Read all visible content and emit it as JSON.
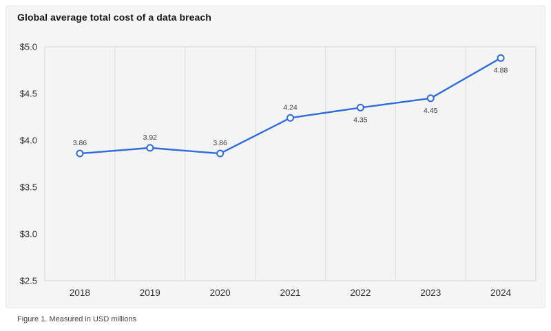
{
  "chart_data": {
    "type": "line",
    "title": "Global average total cost of a data breach",
    "caption": "Figure 1. Measured in USD millions",
    "categories": [
      "2018",
      "2019",
      "2020",
      "2021",
      "2022",
      "2023",
      "2024"
    ],
    "series": [
      {
        "name": "Global average total cost",
        "values": [
          3.86,
          3.92,
          3.86,
          4.24,
          4.35,
          4.45,
          4.88
        ],
        "point_labels": [
          "3.86",
          "3.92",
          "3.86",
          "4.24",
          "4.35",
          "4.45",
          "4.88"
        ],
        "label_positions": [
          "above",
          "above",
          "above",
          "above",
          "below",
          "below",
          "below"
        ]
      }
    ],
    "xlabel": "",
    "ylabel": "",
    "unit": "USD millions",
    "ylim": [
      2.5,
      5.0
    ],
    "y_tick_step": 0.5,
    "y_tick_labels": [
      "$5.0",
      "$4.5",
      "$4.0",
      "$3.5",
      "$3.0",
      "$2.5"
    ],
    "grid": "vertical-only",
    "legend_position": "none",
    "colors": {
      "line": "#2e6bde",
      "marker_fill": "#ffffff",
      "grid_line": "#dcdcdc",
      "plot_border": "#d6d6d6",
      "plot_bg": "#f4f4f5",
      "card_bg": "#f5f5f6",
      "page_bg": "#ffffff",
      "title_text": "#171717",
      "tick_text": "#2f2f2f",
      "point_label_text": "#3c3c3c",
      "caption_text": "#414141"
    }
  }
}
